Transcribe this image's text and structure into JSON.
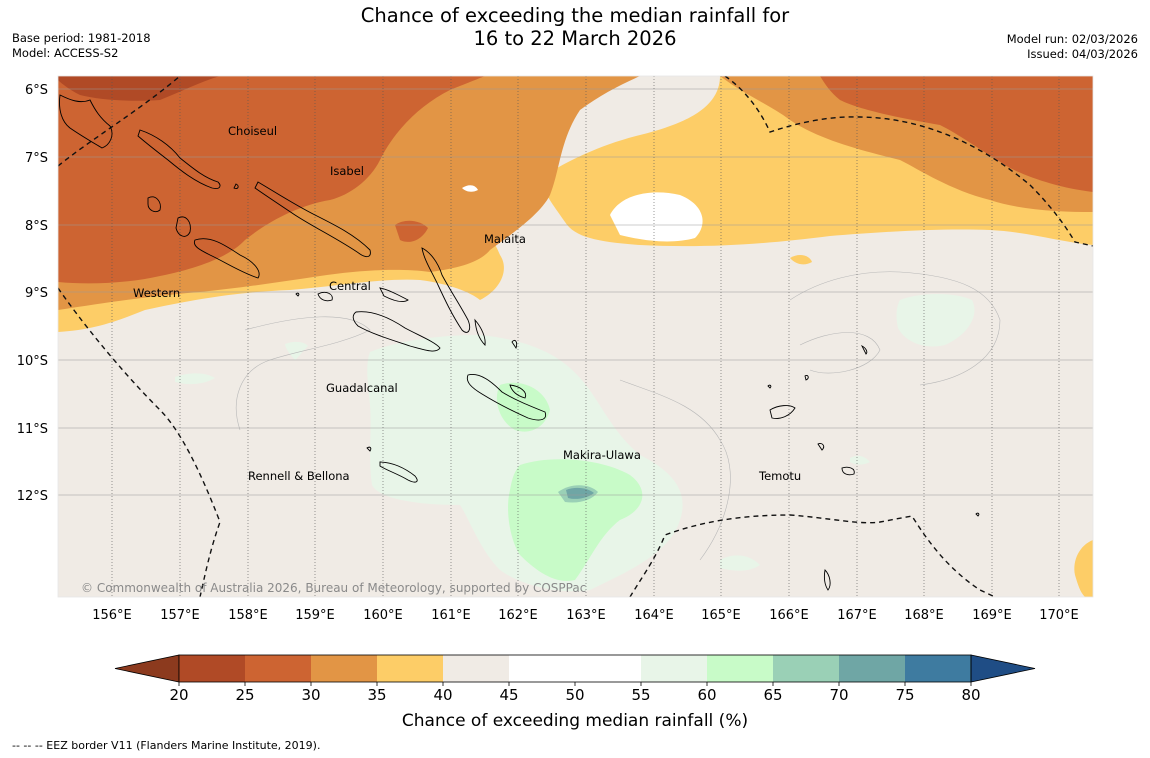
{
  "title": {
    "line1": "Chance of exceeding the median rainfall for",
    "line2": "16 to 22 March 2026"
  },
  "info_left": {
    "base_period": "Base period: 1981-2018",
    "model": "Model: ACCESS-S2"
  },
  "info_right": {
    "model_run": "Model run: 02/03/2026",
    "issued": "Issued: 04/03/2026"
  },
  "map": {
    "lat_labels": [
      "6°S",
      "7°S",
      "8°S",
      "9°S",
      "10°S",
      "11°S",
      "12°S"
    ],
    "lon_labels": [
      "156°E",
      "157°E",
      "158°E",
      "159°E",
      "160°E",
      "161°E",
      "162°E",
      "163°E",
      "164°E",
      "165°E",
      "166°E",
      "167°E",
      "168°E",
      "169°E",
      "170°E"
    ],
    "places": [
      "Choiseul",
      "Isabel",
      "Malaita",
      "Western",
      "Central",
      "Guadalcanal",
      "Makira-Ulawa",
      "Rennell & Bellona",
      "Temotu"
    ],
    "copyright": "© Commonwealth of Australia 2026, Bureau of Meteorology, supported by COSPPac"
  },
  "colorbar": {
    "title": "Chance of exceeding median rainfall (%)",
    "ticks": [
      "20",
      "25",
      "30",
      "35",
      "40",
      "45",
      "50",
      "55",
      "60",
      "65",
      "70",
      "75",
      "80"
    ],
    "colors": {
      "under": "#8c3a1e",
      "bins": [
        "#b04a26",
        "#cd6432",
        "#e29545",
        "#fdcd67",
        "#f0ebe5",
        "#ffffff",
        "#ffffff",
        "#e8f5e8",
        "#c8fbc8",
        "#9ad0b6",
        "#6fa6a5",
        "#3e7ba0"
      ],
      "over": "#1f4d85"
    }
  },
  "footnote": "--  --  -- EEZ border V11 (Flanders Marine Institute, 2019)."
}
